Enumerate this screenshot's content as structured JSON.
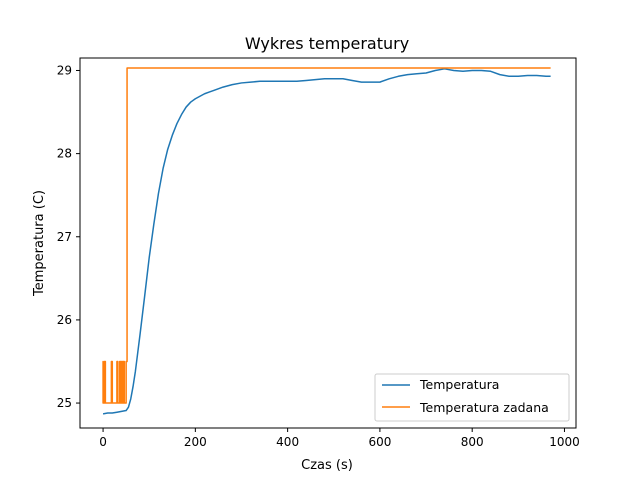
{
  "chart_data": {
    "type": "line",
    "title": "Wykres temperatury",
    "xlabel": "Czas (s)",
    "ylabel": "Temperatura (C)",
    "xlim": [
      -50,
      1025
    ],
    "ylim": [
      24.7,
      29.15
    ],
    "xticks": [
      0,
      200,
      400,
      600,
      800,
      1000
    ],
    "yticks": [
      25,
      26,
      27,
      28,
      29
    ],
    "xtick_labels": [
      "0",
      "200",
      "400",
      "600",
      "800",
      "1000"
    ],
    "ytick_labels": [
      "25",
      "26",
      "27",
      "28",
      "29"
    ],
    "grid": false,
    "legend_position": "lower-right",
    "series": [
      {
        "name": "Temperatura",
        "color": "#1f77b4",
        "x": [
          0,
          10,
          20,
          30,
          40,
          50,
          55,
          60,
          65,
          70,
          75,
          80,
          85,
          90,
          100,
          110,
          120,
          130,
          140,
          150,
          160,
          170,
          180,
          190,
          200,
          210,
          220,
          230,
          240,
          260,
          280,
          300,
          320,
          340,
          360,
          380,
          400,
          420,
          440,
          460,
          480,
          500,
          520,
          540,
          560,
          580,
          600,
          620,
          640,
          660,
          680,
          700,
          720,
          740,
          760,
          780,
          800,
          820,
          840,
          860,
          880,
          900,
          920,
          940,
          960,
          970
        ],
        "y": [
          24.87,
          24.88,
          24.88,
          24.89,
          24.9,
          24.91,
          24.95,
          25.05,
          25.2,
          25.38,
          25.6,
          25.82,
          26.05,
          26.28,
          26.75,
          27.15,
          27.52,
          27.82,
          28.05,
          28.22,
          28.36,
          28.47,
          28.56,
          28.62,
          28.66,
          28.69,
          28.72,
          28.74,
          28.76,
          28.8,
          28.83,
          28.85,
          28.86,
          28.87,
          28.87,
          28.87,
          28.87,
          28.87,
          28.88,
          28.89,
          28.9,
          28.9,
          28.9,
          28.88,
          28.86,
          28.86,
          28.86,
          28.9,
          28.93,
          28.95,
          28.96,
          28.97,
          29.0,
          29.02,
          29.0,
          28.99,
          29.0,
          29.0,
          28.99,
          28.95,
          28.93,
          28.93,
          28.94,
          28.94,
          28.93,
          28.93
        ]
      },
      {
        "name": "Temperatura zadana",
        "color": "#ff7f0e",
        "x": [
          0,
          0,
          0,
          3,
          3,
          5,
          5,
          18,
          18,
          20,
          20,
          30,
          30,
          32,
          32,
          36,
          36,
          38,
          38,
          40,
          40,
          42,
          42,
          44,
          44,
          46,
          46,
          50,
          50,
          52,
          52,
          970
        ],
        "y": [
          25.0,
          25.5,
          25.0,
          25.0,
          25.5,
          25.5,
          25.0,
          25.0,
          25.5,
          25.5,
          25.0,
          25.0,
          25.5,
          25.5,
          25.0,
          25.0,
          25.5,
          25.5,
          25.0,
          25.0,
          25.5,
          25.5,
          25.0,
          25.0,
          25.5,
          25.5,
          25.0,
          25.0,
          25.5,
          25.5,
          29.03,
          29.03
        ]
      }
    ]
  }
}
